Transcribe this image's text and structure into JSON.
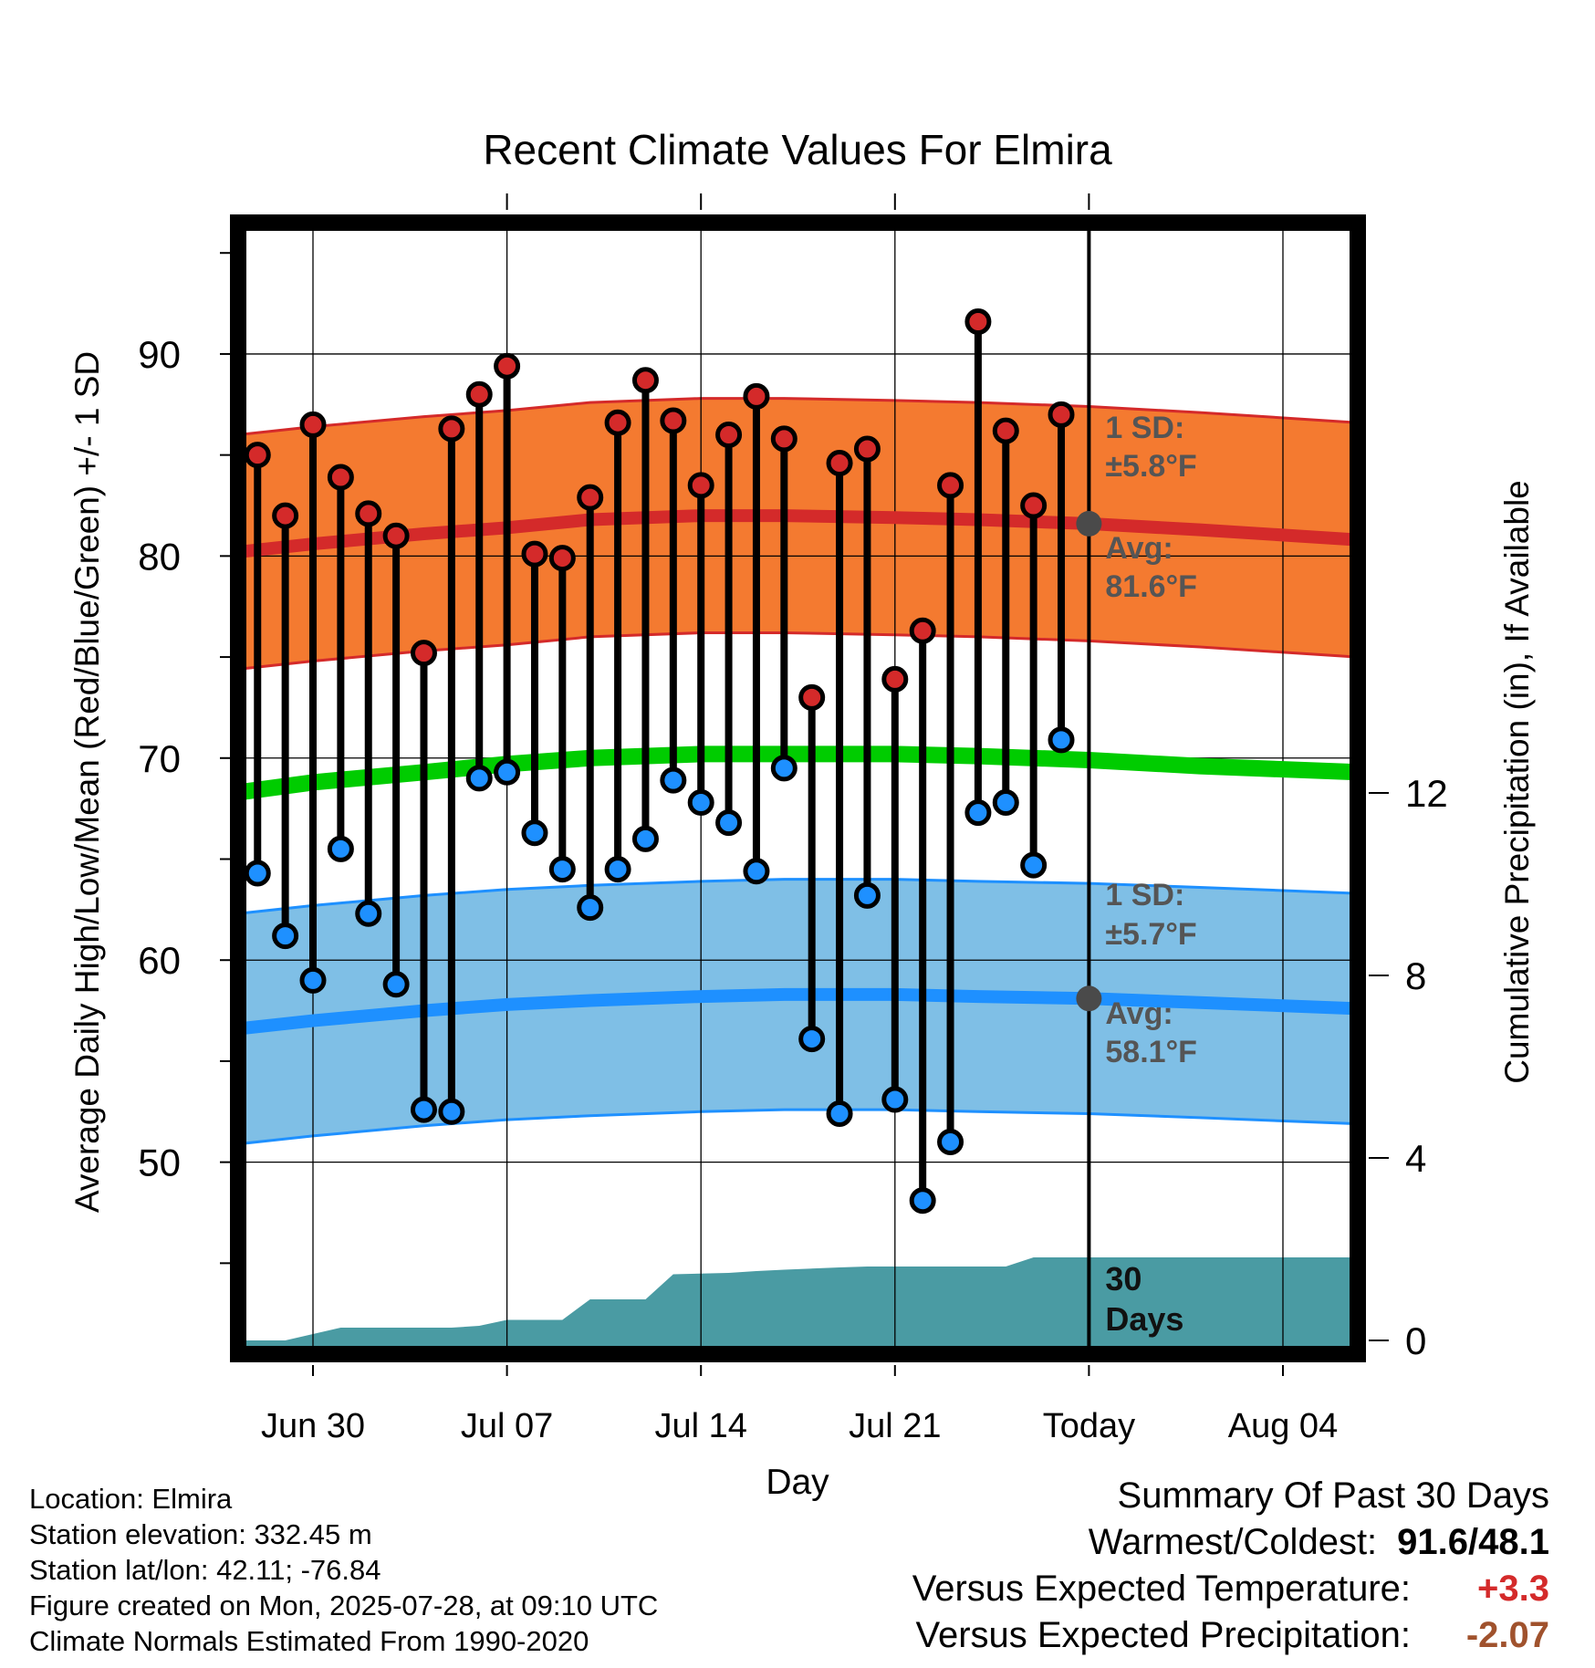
{
  "chart_data": {
    "type": "line",
    "title": "Recent Climate Values For Elmira",
    "xlabel": "Day",
    "ylabel": "Average Daily High/Low/Mean (Red/Blue/Green) +/- 1 SD",
    "ylabel_right": "Cumulative Precipitation (in), If Available",
    "x_ticks": [
      "Jun 30",
      "Jul 07",
      "Jul 14",
      "Jul 21",
      "Today",
      "Aug 04"
    ],
    "x_tick_days": [
      0,
      7,
      14,
      21,
      28,
      35
    ],
    "x_range_days": [
      -2.7,
      37.7
    ],
    "ylim": [
      40.5,
      96.5
    ],
    "y_ticks": [
      50,
      60,
      70,
      80,
      90
    ],
    "y2_ticks": [
      0,
      4,
      8,
      12
    ],
    "y2lim": [
      -0.3,
      24.5
    ],
    "grid": true,
    "colors": {
      "high_band": "#f47a30",
      "high_line": "#d42a2a",
      "low_band": "#7fbfe6",
      "low_line": "#1e90ff",
      "mean_line": "#00cc00",
      "precip": "#4a9ba3",
      "high_dot": "#d42a2a",
      "low_dot": "#1e90ff",
      "today_dot": "#4a4a4a",
      "label_gray": "#555555"
    },
    "normals_days": [
      -2.7,
      0,
      4,
      7,
      10,
      14,
      17,
      21,
      24,
      28,
      32,
      37.7
    ],
    "normal_high": [
      80.2,
      80.6,
      81.1,
      81.4,
      81.8,
      82.0,
      82.0,
      81.9,
      81.8,
      81.6,
      81.3,
      80.8
    ],
    "normal_high_sd": 5.8,
    "normal_low": [
      56.6,
      57.0,
      57.5,
      57.8,
      58.0,
      58.2,
      58.3,
      58.3,
      58.2,
      58.1,
      57.9,
      57.6
    ],
    "normal_low_sd": 5.7,
    "normal_mean": [
      68.3,
      68.8,
      69.3,
      69.7,
      70.0,
      70.2,
      70.2,
      70.2,
      70.1,
      69.9,
      69.6,
      69.3
    ],
    "series": [
      {
        "name": "High",
        "days": [
          -2,
          -1,
          0,
          1,
          2,
          3,
          4,
          5,
          6,
          7,
          8,
          9,
          10,
          11,
          12,
          13,
          14,
          15,
          16,
          17,
          18,
          19,
          20,
          21,
          22,
          23,
          24,
          25,
          26,
          27
        ],
        "values": [
          85.0,
          82.0,
          86.5,
          83.9,
          82.1,
          81.0,
          75.2,
          86.3,
          88.0,
          89.4,
          80.1,
          79.9,
          82.9,
          86.6,
          88.7,
          86.7,
          83.5,
          86.0,
          87.9,
          85.8,
          73.0,
          84.6,
          85.3,
          73.9,
          76.3,
          83.5,
          91.6,
          86.2,
          82.5,
          87.0
        ]
      },
      {
        "name": "Low",
        "days": [
          -2,
          -1,
          0,
          1,
          2,
          3,
          4,
          5,
          6,
          7,
          8,
          9,
          10,
          11,
          12,
          13,
          14,
          15,
          16,
          17,
          18,
          19,
          20,
          21,
          22,
          23,
          24,
          25,
          26,
          27
        ],
        "values": [
          64.3,
          61.2,
          59.0,
          65.5,
          62.3,
          58.8,
          52.6,
          52.5,
          69.0,
          69.3,
          66.3,
          64.5,
          62.6,
          64.5,
          66.0,
          68.9,
          67.8,
          66.8,
          64.4,
          69.5,
          56.1,
          52.4,
          63.2,
          53.1,
          48.1,
          51.0,
          67.3,
          67.8,
          64.7,
          70.9
        ]
      },
      {
        "name": "Cumulative Precipitation",
        "days": [
          -2.7,
          -1,
          1,
          2,
          5,
          6,
          7,
          8,
          9,
          10,
          11,
          12,
          13,
          15,
          16,
          17,
          19,
          20,
          22,
          24,
          25,
          26,
          37.7
        ],
        "values": [
          0,
          0,
          0.28,
          0.28,
          0.28,
          0.32,
          0.45,
          0.45,
          0.45,
          0.9,
          0.9,
          0.9,
          1.45,
          1.48,
          1.52,
          1.55,
          1.6,
          1.62,
          1.62,
          1.62,
          1.62,
          1.82,
          1.82
        ]
      }
    ],
    "annotations": {
      "high_sd_title": "1 SD:",
      "high_sd_value": "±5.8°F",
      "high_avg_title": "Avg:",
      "high_avg_value": "81.6°F",
      "low_sd_title": "1 SD:",
      "low_sd_value": "±5.7°F",
      "low_avg_title": "Avg:",
      "low_avg_value": "58.1°F",
      "window_line1": "30",
      "window_line2": "Days"
    }
  },
  "footer": {
    "location": "Location: Elmira",
    "elevation": "Station elevation: 332.45 m",
    "latlon": "Station lat/lon: 42.11; -76.84",
    "created": "Figure created on Mon, 2025-07-28, at 09:10 UTC",
    "normals": "Climate Normals Estimated From 1990-2020"
  },
  "summary": {
    "title": "Summary Of Past 30 Days",
    "warmest_coldest_label": "Warmest/Coldest:",
    "warmest_coldest_value": "91.6/48.1",
    "temp_label": "Versus Expected Temperature:",
    "temp_value": "+3.3",
    "temp_color": "#d42a2a",
    "precip_label": "Versus Expected Precipitation:",
    "precip_value": "-2.07",
    "precip_color": "#a0522d"
  }
}
